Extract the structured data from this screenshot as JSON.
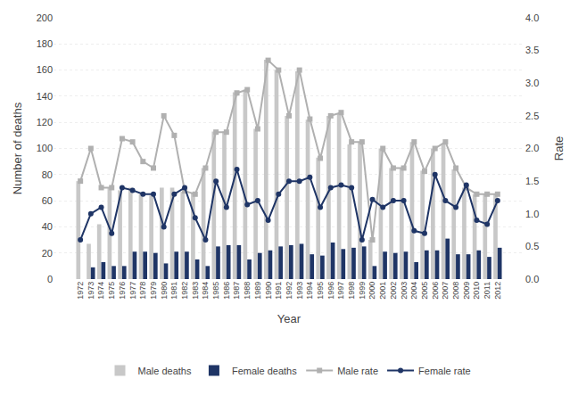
{
  "chart_data": {
    "type": "bar",
    "xlabel": "Year",
    "ylabel": "Number of deaths",
    "y2label": "Rate",
    "categories": [
      "1972",
      "1973",
      "1974",
      "1975",
      "1976",
      "1977",
      "1978",
      "1979",
      "1980",
      "1981",
      "1982",
      "1983",
      "1984",
      "1985",
      "1986",
      "1987",
      "1988",
      "1989",
      "1990",
      "1991",
      "1992",
      "1993",
      "1994",
      "1995",
      "1996",
      "1997",
      "1998",
      "1999",
      "2000",
      "2001",
      "2002",
      "2003",
      "2004",
      "2005",
      "2006",
      "2007",
      "2008",
      "2009",
      "2010",
      "2011",
      "2012"
    ],
    "series": [
      {
        "name": "Male deaths",
        "type": "bar",
        "color": "#c8c8c8",
        "values": [
          75,
          27,
          42,
          70,
          68,
          70,
          65,
          64,
          70,
          70,
          67,
          66,
          85,
          113,
          113,
          143,
          145,
          115,
          168,
          160,
          125,
          159,
          122,
          93,
          125,
          127,
          103,
          105,
          30,
          100,
          85,
          85,
          105,
          83,
          100,
          104,
          84,
          70,
          65,
          65,
          65
        ]
      },
      {
        "name": "Female deaths",
        "type": "bar",
        "color": "#1f3566",
        "values": [
          0,
          9,
          13,
          10,
          10,
          21,
          21,
          20,
          12,
          21,
          21,
          15,
          10,
          25,
          26,
          26,
          15,
          20,
          22,
          25,
          26,
          27,
          19,
          18,
          28,
          23,
          24,
          25,
          10,
          21,
          20,
          21,
          13,
          22,
          22,
          31,
          19,
          19,
          22,
          17,
          24
        ]
      },
      {
        "name": "Male rate",
        "type": "line",
        "axis": "y2",
        "color": "#b0b0b0",
        "marker": "square",
        "values": [
          1.5,
          2.0,
          1.4,
          1.4,
          2.15,
          2.1,
          1.8,
          1.7,
          2.5,
          2.2,
          1.35,
          1.3,
          1.7,
          2.25,
          2.25,
          2.85,
          2.9,
          2.3,
          3.35,
          3.2,
          2.5,
          3.2,
          2.45,
          1.85,
          2.5,
          2.55,
          2.1,
          2.1,
          0.6,
          2.0,
          1.7,
          1.7,
          2.1,
          1.65,
          2.0,
          2.1,
          1.7,
          1.4,
          1.3,
          1.3,
          1.3
        ]
      },
      {
        "name": "Female rate",
        "type": "line",
        "axis": "y2",
        "color": "#1f3566",
        "marker": "circle",
        "values": [
          0.6,
          1.0,
          1.1,
          0.7,
          1.4,
          1.36,
          1.3,
          1.3,
          0.8,
          1.3,
          1.4,
          0.94,
          0.6,
          1.5,
          1.1,
          1.68,
          1.14,
          1.2,
          0.9,
          1.3,
          1.5,
          1.5,
          1.56,
          1.1,
          1.4,
          1.44,
          1.4,
          0.6,
          1.22,
          1.1,
          1.2,
          1.2,
          0.74,
          0.7,
          1.6,
          1.2,
          1.1,
          1.44,
          0.9,
          0.84,
          1.2
        ]
      }
    ],
    "ylim": [
      0,
      200
    ],
    "yticks": [
      0,
      20,
      40,
      60,
      80,
      100,
      120,
      140,
      160,
      180,
      200
    ],
    "y2lim": [
      0,
      4
    ],
    "y2ticks": [
      {
        "value": 0,
        "label": "0.0"
      },
      0.5,
      {
        "value": 1,
        "label": "1.0"
      },
      1.5,
      {
        "value": 2,
        "label": "2.0"
      },
      2.5,
      {
        "value": 3,
        "label": "3.0"
      },
      3.5,
      {
        "value": 4,
        "label": "4.0"
      }
    ],
    "grid": true,
    "legend": "bottom"
  }
}
